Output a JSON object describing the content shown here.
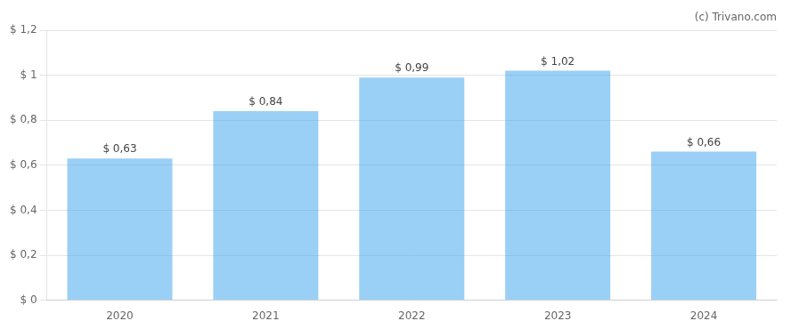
{
  "chart_data": {
    "type": "bar",
    "categories": [
      "2020",
      "2021",
      "2022",
      "2023",
      "2024"
    ],
    "values": [
      0.63,
      0.84,
      0.99,
      1.02,
      0.66
    ],
    "value_labels": [
      "$ 0,63",
      "$ 0,84",
      "$ 0,99",
      "$ 1,02",
      "$ 0,66"
    ],
    "data_labels": true,
    "ylim": [
      0,
      1.2
    ],
    "yticks": [
      {
        "value": 0,
        "label": "$ 0"
      },
      {
        "value": 0.2,
        "label": "$ 0,2"
      },
      {
        "value": 0.4,
        "label": "$ 0,4"
      },
      {
        "value": 0.6,
        "label": "$ 0,6"
      },
      {
        "value": 0.8,
        "label": "$ 0,8"
      },
      {
        "value": 1.0,
        "label": "$ 1"
      },
      {
        "value": 1.2,
        "label": "$ 1,2"
      }
    ],
    "grid": true,
    "annotations": [
      "(c) Trivano.com"
    ]
  }
}
